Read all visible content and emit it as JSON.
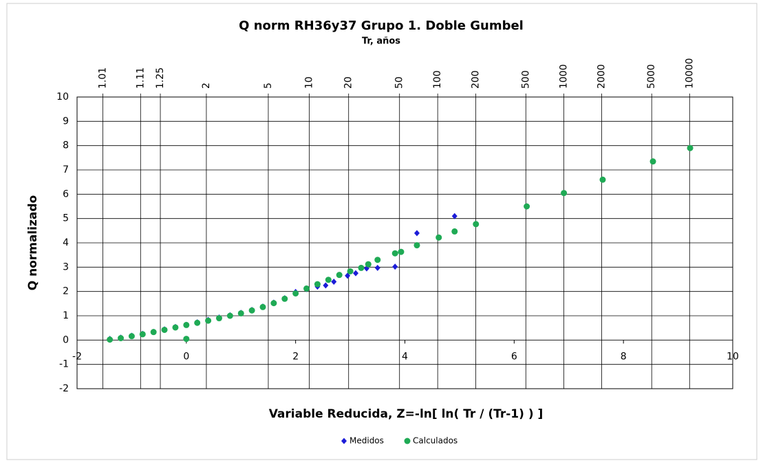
{
  "chart_data": {
    "type": "scatter",
    "title": "Q norm RH36y37 Grupo 1. Doble Gumbel",
    "x2_label": "Tr, años",
    "x_label": "Variable Reducida, Z=-ln[ ln( Tr / (Tr-1) ) ]",
    "y_label": "Q normalizado",
    "xlim": [
      -2,
      10
    ],
    "xticks": [
      -2,
      0,
      2,
      4,
      6,
      8,
      10
    ],
    "ylim": [
      -2,
      10
    ],
    "yticks": [
      -2,
      -1,
      0,
      1,
      2,
      3,
      4,
      5,
      6,
      7,
      8,
      9,
      10
    ],
    "x2scale": "gumbel",
    "x2ticks": [
      1.01,
      1.11,
      1.25,
      2,
      5,
      10,
      20,
      50,
      100,
      200,
      500,
      1000,
      2000,
      5000,
      10000
    ],
    "legend": "bottom",
    "series": [
      {
        "name": "Medidos",
        "color": "#1c1cd8",
        "marker": "diamond",
        "x": [
          -1.4,
          -1.2,
          -1.0,
          -0.8,
          -0.6,
          -0.4,
          -0.2,
          0,
          0.2,
          0.4,
          0.6,
          0.8,
          1.0,
          1.2,
          1.4,
          1.6,
          1.8,
          2.0,
          2.2,
          2.4,
          2.55,
          2.7,
          2.95,
          3.1,
          3.3,
          3.5,
          3.82,
          4.22,
          4.91
        ],
        "values": [
          0.05,
          0.1,
          0.18,
          0.26,
          0.34,
          0.44,
          0.54,
          0.63,
          0.73,
          0.83,
          0.93,
          1.02,
          1.12,
          1.24,
          1.38,
          1.54,
          1.72,
          1.98,
          2.1,
          2.2,
          2.25,
          2.4,
          2.65,
          2.75,
          2.95,
          2.97,
          3.02,
          4.4,
          5.1
        ]
      },
      {
        "name": "Calculados",
        "color": "#1faa55",
        "marker": "circle",
        "x": [
          -1.4,
          -1.2,
          -1.0,
          -0.8,
          -0.6,
          -0.4,
          -0.2,
          0,
          0.2,
          0.4,
          0.6,
          0.8,
          1.0,
          1.2,
          1.4,
          1.6,
          1.8,
          2.0,
          2.2,
          2.4,
          2.6,
          2.8,
          3.0,
          3.2,
          3.33,
          3.5,
          3.82,
          3.93,
          4.22,
          4.62,
          4.91,
          5.3,
          6.23,
          6.91,
          7.62,
          8.54,
          9.22,
          0
        ],
        "values": [
          0.02,
          0.08,
          0.16,
          0.24,
          0.33,
          0.42,
          0.52,
          0.62,
          0.71,
          0.8,
          0.9,
          1.0,
          1.1,
          1.22,
          1.36,
          1.52,
          1.7,
          1.92,
          2.12,
          2.3,
          2.48,
          2.68,
          2.83,
          2.97,
          3.12,
          3.3,
          3.57,
          3.63,
          3.9,
          4.22,
          4.47,
          4.77,
          5.5,
          6.05,
          6.6,
          7.35,
          7.9,
          0.05
        ]
      }
    ]
  }
}
